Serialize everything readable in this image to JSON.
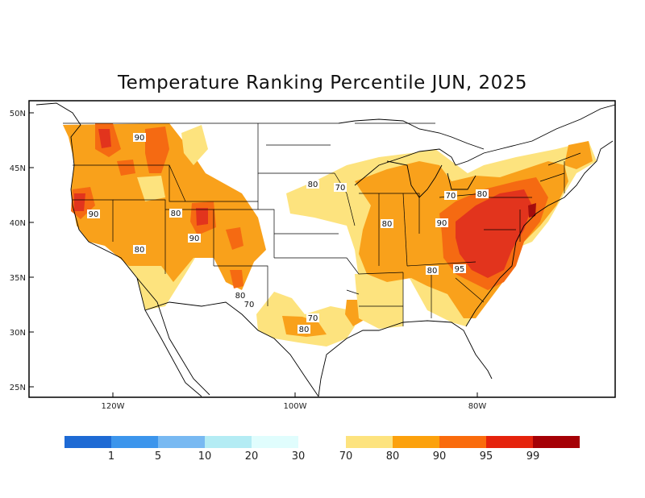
{
  "title": "Temperature Ranking Percentile JUN, 2025",
  "lat_labels": [
    "50N",
    "45N",
    "40N",
    "35N",
    "30N",
    "25N"
  ],
  "lon_labels": [
    "120W",
    "100W",
    "80W"
  ],
  "contour_labels": [
    "90",
    "90",
    "80",
    "90",
    "80",
    "80",
    "70",
    "80",
    "70",
    "80",
    "90",
    "80",
    "95",
    "80",
    "70",
    "70",
    "80"
  ],
  "legend": {
    "cold_bins": [
      {
        "color": "#1e6ad4",
        "label": "1"
      },
      {
        "color": "#3c95ec",
        "label": "5"
      },
      {
        "color": "#78b9f2",
        "label": "10"
      },
      {
        "color": "#b4ecf4",
        "label": "20"
      },
      {
        "color": "#e0fdfd",
        "label": "30"
      }
    ],
    "warm_bins": [
      {
        "color": "#fde37e",
        "label": "70"
      },
      {
        "color": "#fca10c",
        "label": "80"
      },
      {
        "color": "#fa6b0c",
        "label": "90"
      },
      {
        "color": "#e5230c",
        "label": "95"
      },
      {
        "color": "#a50005",
        "label": "99"
      }
    ]
  },
  "colors": {
    "p70": "#fde37e",
    "p80": "#f9a11b",
    "p90": "#f56a12",
    "p95": "#e2341d",
    "p99": "#a50d0d"
  }
}
